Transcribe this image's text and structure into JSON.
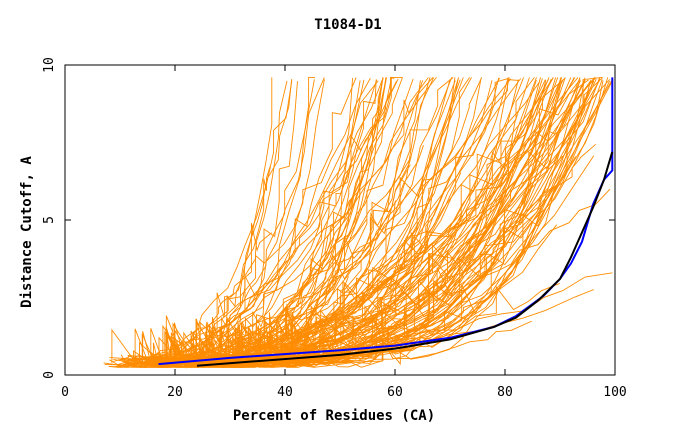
{
  "chart_data": {
    "type": "line",
    "title": "T1084-D1",
    "xlabel": "Percent of Residues (CA)",
    "ylabel": "Distance Cutoff, A",
    "xlim": [
      0,
      100
    ],
    "ylim": [
      0,
      10
    ],
    "x_ticks": [
      0,
      20,
      40,
      60,
      80,
      100
    ],
    "y_ticks": [
      0,
      5,
      10
    ],
    "grid": false,
    "legend": "none",
    "colors": {
      "background_models": "#ff8c00",
      "highlight_blue": "#0000ff",
      "highlight_black": "#000000"
    },
    "series": [
      {
        "name": "highlight-blue",
        "color": "#0000ff",
        "x": [
          17,
          30,
          50,
          60,
          70,
          78,
          82,
          87,
          90,
          92,
          94,
          96,
          98,
          99.5,
          99.5
        ],
        "y": [
          0.35,
          0.55,
          0.8,
          0.95,
          1.2,
          1.55,
          1.9,
          2.55,
          3.1,
          3.6,
          4.3,
          5.5,
          6.3,
          6.6,
          9.6
        ]
      },
      {
        "name": "highlight-black",
        "color": "#000000",
        "x": [
          24,
          35,
          50,
          60,
          70,
          78,
          82,
          86,
          90,
          92,
          94,
          96,
          98,
          99.5
        ],
        "y": [
          0.3,
          0.45,
          0.65,
          0.85,
          1.15,
          1.55,
          1.85,
          2.4,
          3.1,
          3.8,
          4.6,
          5.4,
          6.3,
          7.2
        ]
      }
    ],
    "background_series": {
      "count": 150,
      "x_range": [
        7,
        100
      ],
      "y_range": [
        0.25,
        9.6
      ]
    }
  }
}
